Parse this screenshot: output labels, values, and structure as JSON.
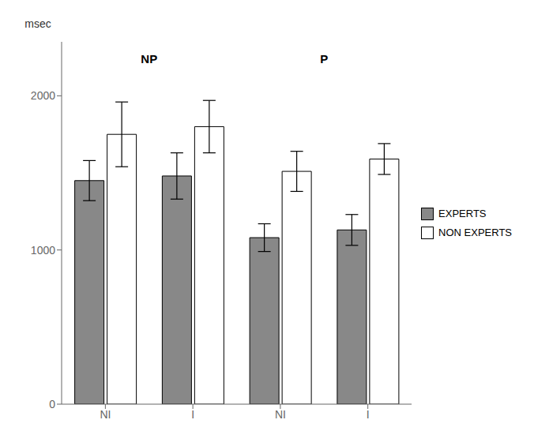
{
  "chart_data": {
    "type": "bar",
    "categories": [
      "NI",
      "I",
      "NI",
      "I"
    ],
    "series": [
      {
        "name": "EXPERTS",
        "color": "#888888",
        "values": [
          1450,
          1480,
          1080,
          1130
        ],
        "errors": [
          130,
          150,
          90,
          100
        ]
      },
      {
        "name": "NON EXPERTS",
        "color": "#ffffff",
        "values": [
          1750,
          1800,
          1510,
          1590
        ],
        "errors": [
          210,
          170,
          130,
          100
        ]
      }
    ],
    "ylabel": "msec",
    "ylim": [
      0,
      2350
    ],
    "yticks": [
      0,
      1000,
      2000
    ],
    "annotations": [
      {
        "text": "NP",
        "y": 2200
      },
      {
        "text": "P",
        "y": 2200
      }
    ],
    "grid": false,
    "legend": "right"
  }
}
